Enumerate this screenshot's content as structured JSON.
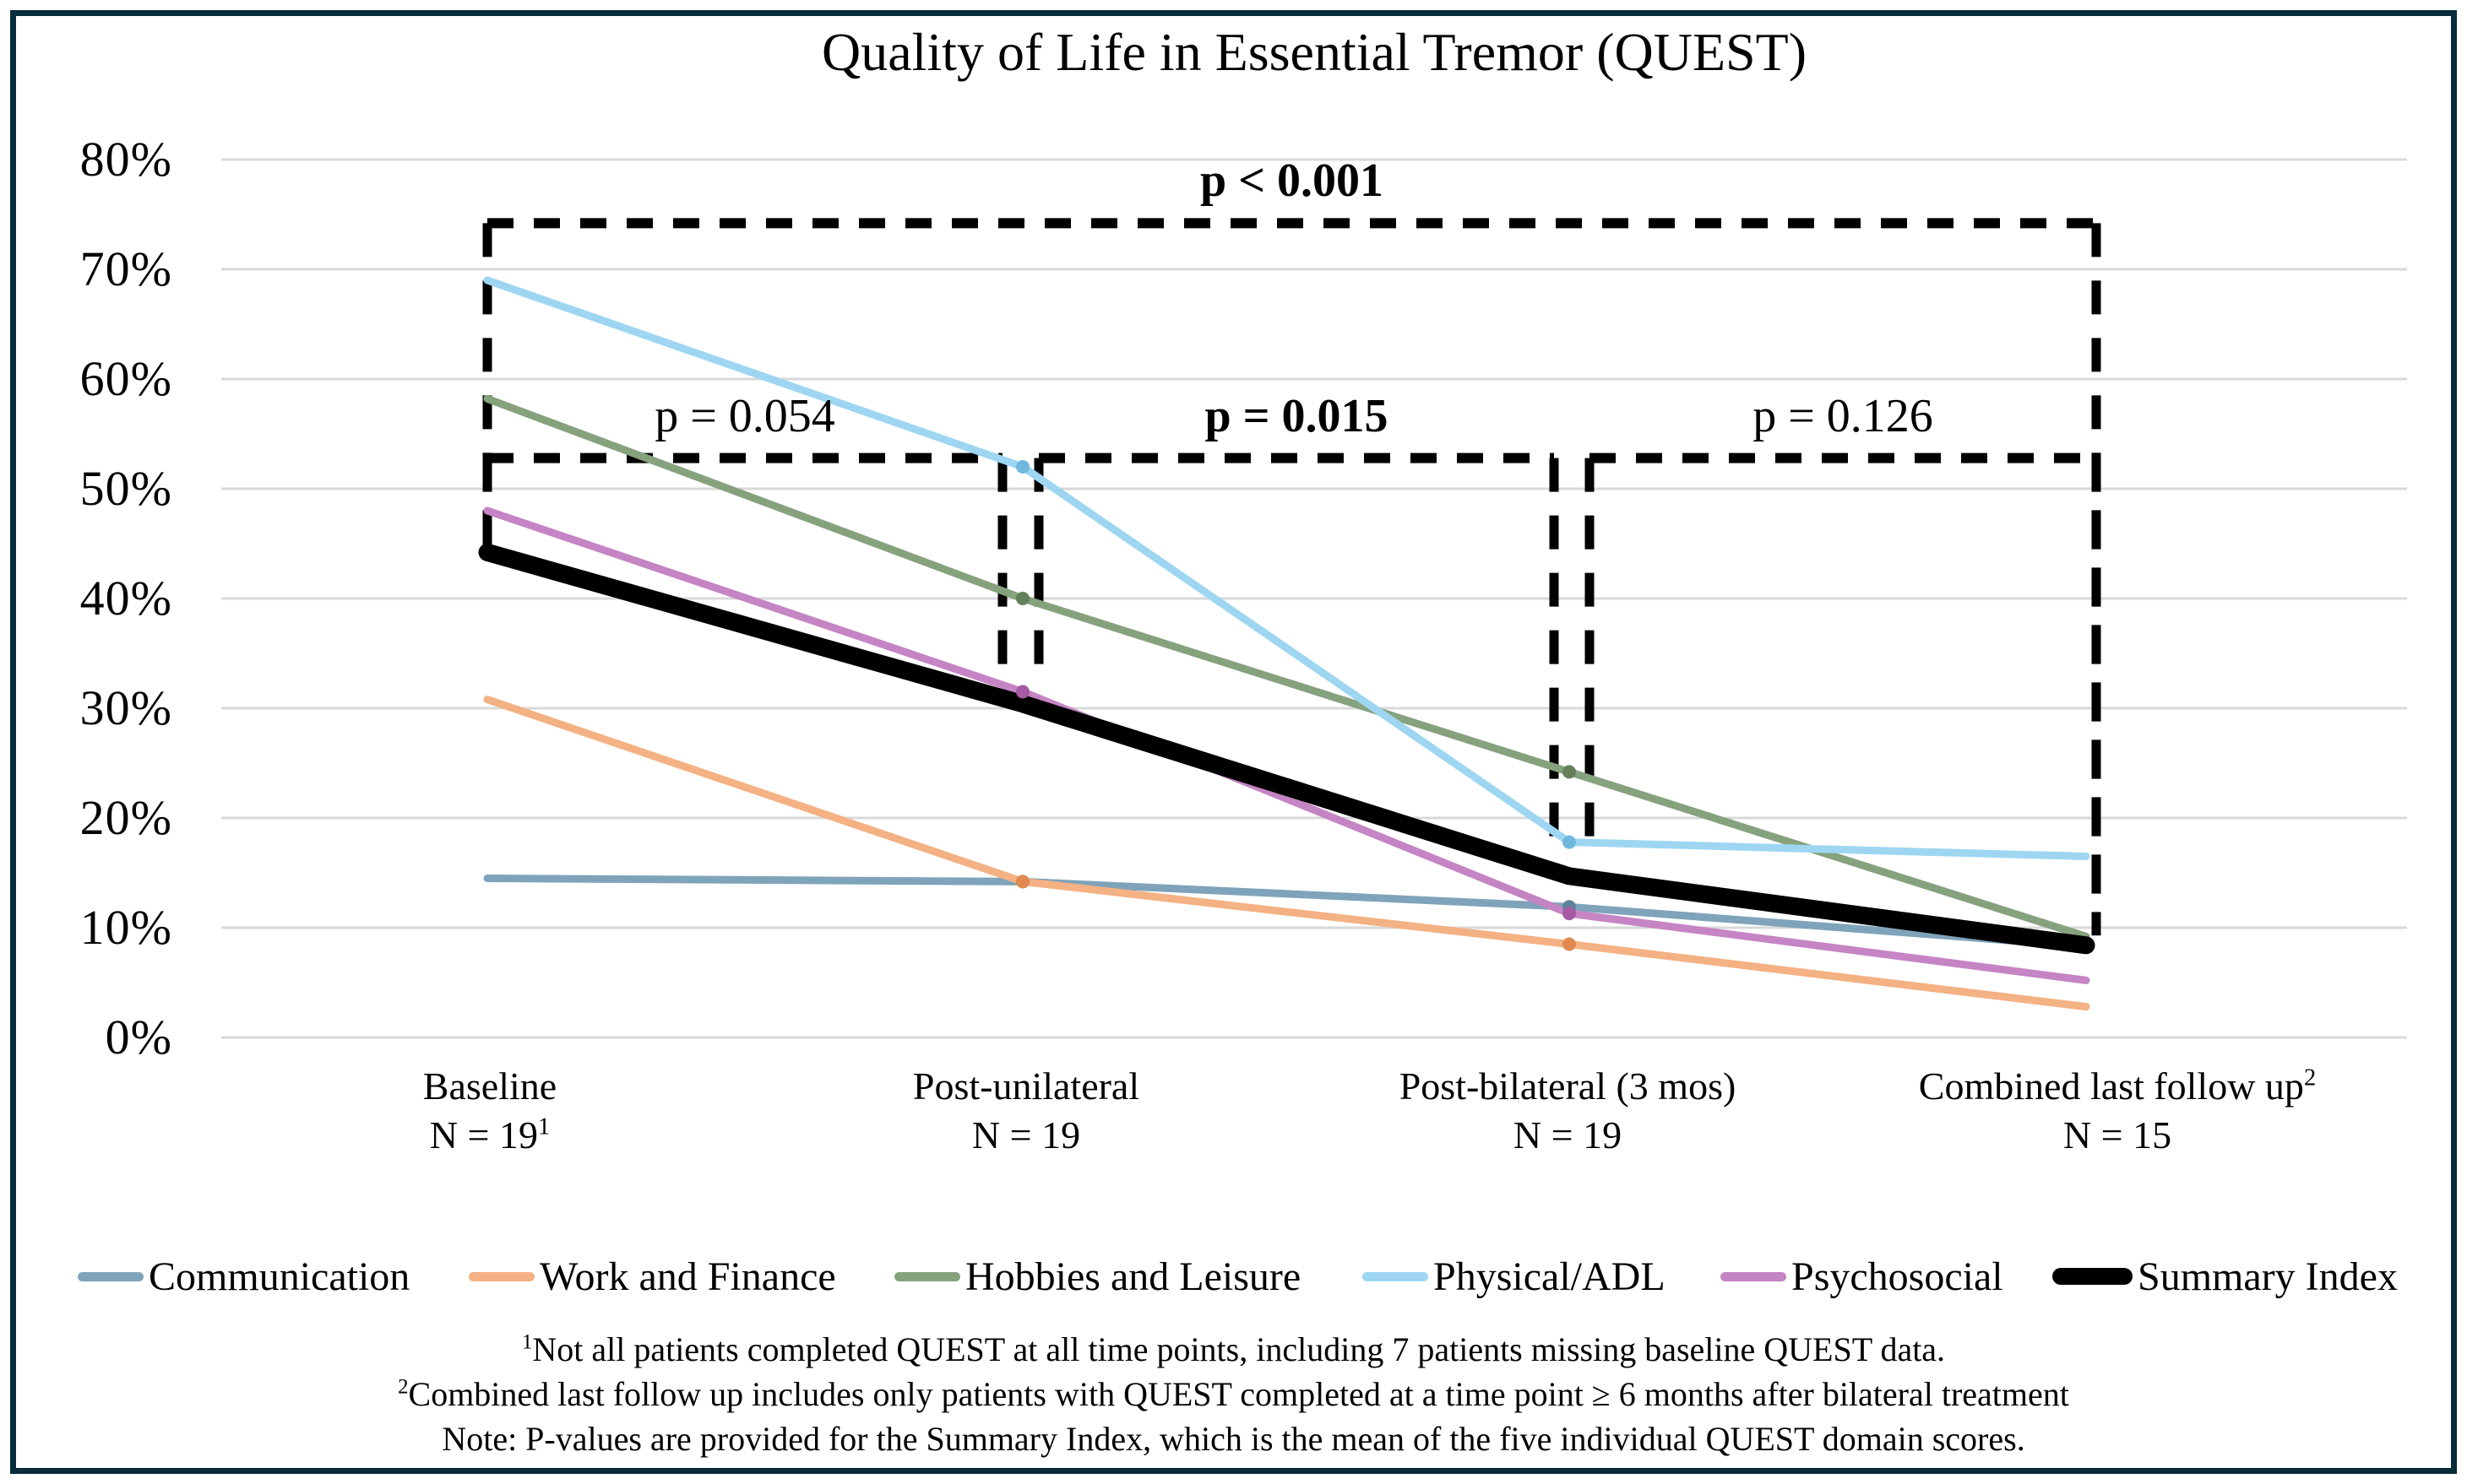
{
  "title": "Quality of Life in Essential Tremor (QUEST)",
  "figure": {
    "border_color": "#072c3c",
    "background_color": "#ffffff",
    "gridline_color": "#d9d9d9",
    "annotation_color": "#000000"
  },
  "chart_data": {
    "type": "line",
    "title": "Quality of Life in Essential Tremor (QUEST)",
    "grid": "horizontal",
    "legend_position": "bottom",
    "y_axis": {
      "min": 0,
      "max": 80,
      "step": 10,
      "format": "percent",
      "tick_labels": [
        "0%",
        "10%",
        "20%",
        "30%",
        "40%",
        "50%",
        "60%",
        "70%",
        "80%"
      ]
    },
    "categories": [
      {
        "line1": "Baseline",
        "line1_sup": "",
        "line2": "N = 19",
        "line2_sup": "1"
      },
      {
        "line1": "Post-unilateral",
        "line1_sup": "",
        "line2": "N = 19",
        "line2_sup": ""
      },
      {
        "line1": "Post-bilateral (3 mos)",
        "line1_sup": "",
        "line2": "N = 19",
        "line2_sup": ""
      },
      {
        "line1": "Combined last follow up",
        "line1_sup": "2",
        "line2": "N = 15",
        "line2_sup": ""
      }
    ],
    "series": [
      {
        "name": "Communication",
        "color": "#7FA3BA",
        "dot_color": "#5E8299",
        "values_pct": [
          14.5,
          14.2,
          11.9,
          8.3
        ]
      },
      {
        "name": "Work and Finance",
        "color": "#F4B183",
        "dot_color": "#E08A50",
        "values_pct": [
          30.8,
          14.2,
          8.5,
          2.8
        ]
      },
      {
        "name": "Hobbies and Leisure",
        "color": "#85A27D",
        "dot_color": "#64815C",
        "values_pct": [
          58.2,
          40.0,
          24.2,
          9.2
        ]
      },
      {
        "name": "Physical/ADL",
        "color": "#9ED6F2",
        "dot_color": "#6FB8DF",
        "values_pct": [
          69.0,
          52.0,
          17.8,
          16.5
        ]
      },
      {
        "name": "Psychosocial",
        "color": "#C584C4",
        "dot_color": "#A45BA3",
        "values_pct": [
          48.0,
          31.5,
          11.3,
          5.2
        ]
      },
      {
        "name": "Summary Index",
        "color": "#000000",
        "emphasis": true,
        "values_pct": [
          44.2,
          30.4,
          14.7,
          8.4
        ]
      }
    ],
    "p_annotations": [
      {
        "label": "p < 0.001",
        "bold": true,
        "compares": [
          "Baseline",
          "Combined last follow up"
        ],
        "top_pct": 74.2,
        "left_drop_pct": 44.8,
        "right_drop_pct": 9.3
      },
      {
        "label": "p = 0.054",
        "bold": false,
        "compares": [
          "Baseline",
          "Post-unilateral"
        ],
        "top_pct": 52.8,
        "left_drop_pct": 44.8,
        "right_drop_pct": 33.4
      },
      {
        "label": "p = 0.015",
        "bold": true,
        "compares": [
          "Post-unilateral",
          "Post-bilateral (3 mos)"
        ],
        "top_pct": 52.8,
        "left_drop_pct": 33.4,
        "right_drop_pct": 18.2
      },
      {
        "label": "p = 0.126",
        "bold": false,
        "compares": [
          "Post-bilateral (3 mos)",
          "Combined last follow up"
        ],
        "top_pct": 52.8,
        "left_drop_pct": 18.2,
        "right_drop_pct": 9.3
      }
    ]
  },
  "footnotes": [
    {
      "sup": "1",
      "text": "Not all patients completed QUEST at all time points, including 7 patients missing baseline QUEST data."
    },
    {
      "sup": "2",
      "text": "Combined last follow up includes only patients with QUEST completed at a time point ≥ 6 months after bilateral treatment"
    },
    {
      "sup": "",
      "text": "Note: P-values are provided for the Summary Index, which is the mean of the five individual QUEST domain scores."
    }
  ]
}
